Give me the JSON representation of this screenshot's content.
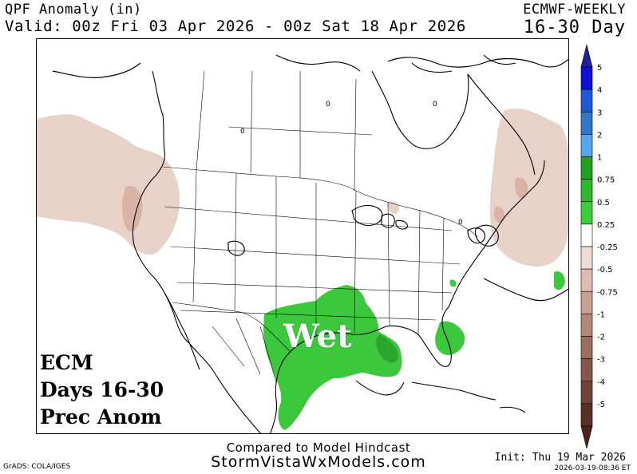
{
  "header": {
    "title": "QPF Anomaly (in)",
    "valid": "Valid: 00z Fri 03 Apr 2026 - 00z Sat 18 Apr 2026",
    "model": "ECMWF-WEEKLY",
    "range": "16-30 Day"
  },
  "map": {
    "overlay_lines": [
      "ECM",
      "Days 16-30",
      "Prec Anom"
    ],
    "wet_label": "Wet",
    "contour_labels": [
      "0",
      "0",
      "0",
      "0"
    ],
    "colors": {
      "wet": "#3cc83c",
      "wet_strong": "#2ca52c",
      "dry_light": "#e8d2c8",
      "dry_medium": "#d9b4a6",
      "dry_strong": "#c49a8a"
    }
  },
  "colorbar": {
    "labels": [
      "5",
      "4",
      "3",
      "2",
      "1",
      "0.75",
      "0.5",
      "0.25",
      "-0.25",
      "-0.5",
      "-0.75",
      "-1",
      "-2",
      "-3",
      "-4",
      "-5"
    ],
    "colors": [
      "#1010d8",
      "#1e5ad8",
      "#2f78c8",
      "#55a8ee",
      "#22a022",
      "#2fb82f",
      "#3ccc3c",
      "#ffffff",
      "#f0dcd6",
      "#dcbcb0",
      "#c8a094",
      "#b48878",
      "#9c6e60",
      "#86574a",
      "#714337",
      "#5a2f25"
    ],
    "top_arrow_color": "#2020a0",
    "bottom_arrow_color": "#4a2418"
  },
  "footer": {
    "compared": "Compared to Model Hindcast",
    "site": "StormVistaWxModels.com",
    "grads": "GrADS: COLA/IGES",
    "init": "Init: Thu 19 Mar 2026",
    "stamp": "2026-03-19-08:36 ET"
  }
}
